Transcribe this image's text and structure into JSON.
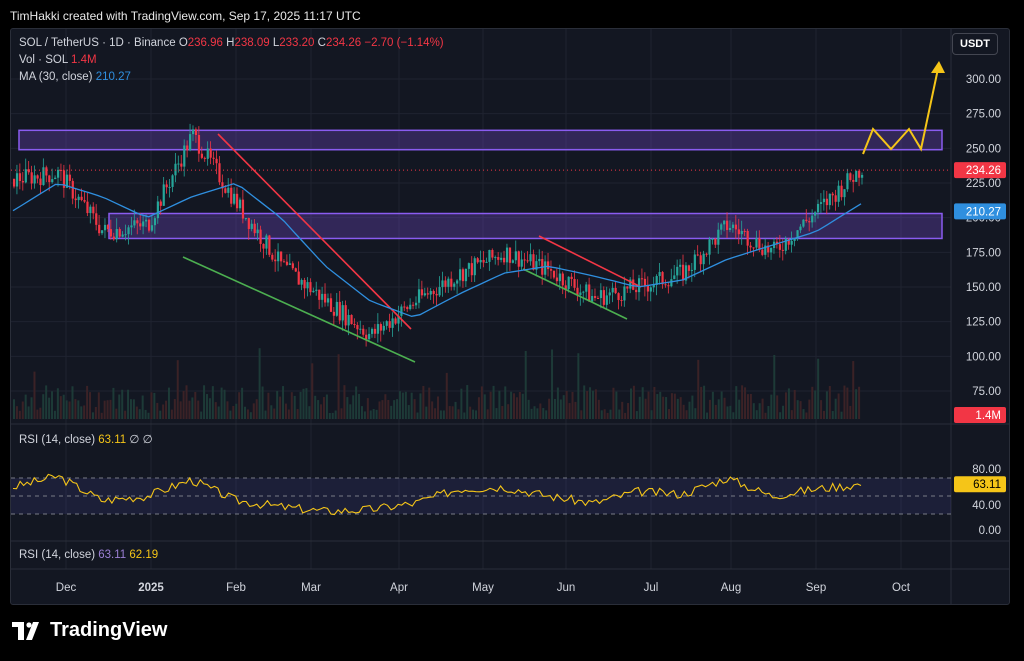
{
  "header": {
    "attribution": "TimHakki created with TradingView.com, Sep 17, 2025 11:17 UTC"
  },
  "legend": {
    "symbol": "SOL / TetherUS · 1D · Binance",
    "open_label": "O",
    "open": "236.96",
    "high_label": "H",
    "high": "238.09",
    "low_label": "L",
    "low": "233.20",
    "close_label": "C",
    "close": "234.26",
    "change": "−2.70 (−1.14%)",
    "vol_label": "Vol · SOL",
    "vol": "1.4M",
    "ma_label": "MA (30, close)",
    "ma": "210.27"
  },
  "currency_button": "USDT",
  "rsi1": {
    "label": "RSI (14, close)",
    "value": "63.11",
    "extra": "∅ ∅",
    "badge": "63.11",
    "ticks": [
      "80.00",
      "40.00"
    ]
  },
  "rsi2": {
    "label": "RSI (14, close)",
    "value1": "63.11",
    "value2": "62.19",
    "tick": "0.00"
  },
  "badges": {
    "price": "234.26",
    "ma": "210.27",
    "vol": "1.4M"
  },
  "brand": "TradingView",
  "colors": {
    "up": "#26a69a",
    "down": "#f23645",
    "ma": "#2f8fdf",
    "rsi": "#f5c518",
    "zone": "#7b4bd6",
    "projection": "#f5c518",
    "background": "#131722"
  },
  "chart_data": {
    "type": "line",
    "title": "SOL / TetherUS · 1D · Binance",
    "y_axis_ticks": [
      "300.00",
      "275.00",
      "250.00",
      "225.00",
      "200.00",
      "175.00",
      "150.00",
      "125.00",
      "100.00",
      "75.00"
    ],
    "x_axis_ticks": [
      "Dec",
      "2025",
      "Feb",
      "Mar",
      "Apr",
      "May",
      "Jun",
      "Jul",
      "Aug",
      "Sep",
      "Oct"
    ],
    "ylim": [
      75,
      300
    ],
    "x": [
      "Dec",
      "Dec",
      "2025",
      "Jan",
      "Feb",
      "Feb",
      "Mar",
      "Mar",
      "Apr",
      "Apr",
      "May",
      "May",
      "Jun",
      "Jun",
      "Jul",
      "Jul",
      "Aug",
      "Aug",
      "Sep",
      "Sep"
    ],
    "series": [
      {
        "values": [
          228,
          232,
          190,
          195,
          260,
          210,
          165,
          140,
          115,
          140,
          160,
          175,
          162,
          142,
          150,
          160,
          195,
          175,
          205,
          236
        ]
      },
      {
        "name": "MA (30, close)",
        "values": [
          205,
          225,
          215,
          200,
          215,
          225,
          200,
          165,
          140,
          128,
          145,
          160,
          165,
          158,
          150,
          155,
          170,
          180,
          190,
          210
        ]
      }
    ],
    "zones": [
      {
        "low": 249,
        "high": 263
      },
      {
        "low": 185,
        "high": 203
      }
    ],
    "rsi": [
      60,
      72,
      45,
      50,
      68,
      45,
      38,
      33,
      35,
      42,
      58,
      60,
      50,
      42,
      55,
      52,
      70,
      50,
      58,
      63
    ]
  }
}
